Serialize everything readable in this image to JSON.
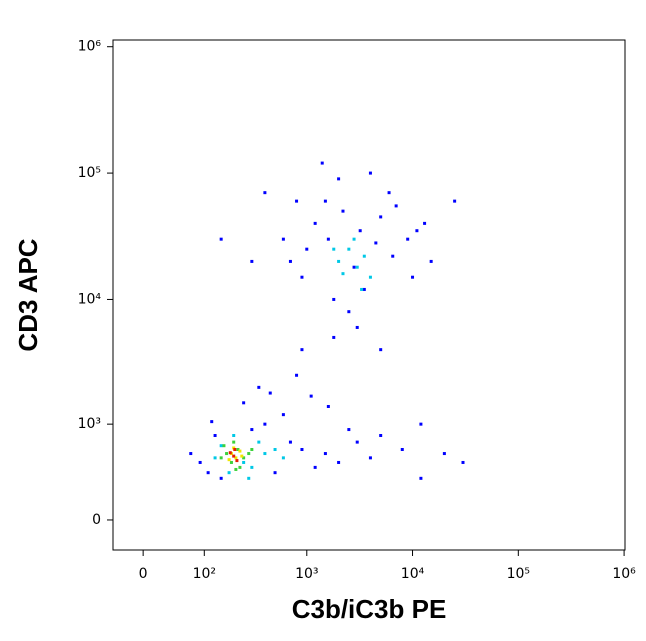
{
  "chart_data": {
    "type": "scatter",
    "x_label": "C3b/iC3b PE",
    "y_label": "CD3 APC",
    "xscale": "logicle",
    "yscale": "logicle",
    "xlim": [
      -40,
      1020000
    ],
    "ylim": [
      -207,
      1130000
    ],
    "xticks": [
      0,
      {
        "value": 100,
        "label": "10²"
      },
      {
        "value": 1000,
        "label": "10³"
      },
      {
        "value": 10000,
        "label": "10⁴"
      },
      {
        "value": 100000,
        "label": "10⁵"
      },
      {
        "value": 1000000,
        "label": "10⁶"
      }
    ],
    "yticks": [
      0,
      {
        "value": 1000,
        "label": "10³"
      },
      {
        "value": 10000,
        "label": "10⁴"
      },
      {
        "value": 100000,
        "label": "10⁵"
      },
      {
        "value": 1000000,
        "label": "10⁶"
      }
    ],
    "series": [
      {
        "color": "#0000ff",
        "x": [
          90,
          110,
          130,
          150,
          300,
          400,
          500,
          700,
          900,
          1200,
          1500,
          2000,
          3000,
          4000,
          5000,
          8000,
          12000,
          20000,
          70,
          120,
          600,
          250,
          350,
          450,
          800,
          1100,
          1600,
          2500,
          12000,
          30000,
          600,
          1500,
          2200,
          900,
          1000,
          1200,
          1800,
          2500,
          3500,
          5000,
          7000,
          9000,
          13000,
          15000,
          25000,
          400,
          700,
          2000,
          4000,
          6000,
          10000,
          300,
          150,
          1800,
          3000,
          5000,
          800,
          1400,
          900,
          11000,
          2800,
          4500,
          6500,
          1600,
          3200
        ],
        "values": [
          450,
          350,
          800,
          300,
          900,
          1000,
          350,
          700,
          600,
          400,
          550,
          450,
          700,
          500,
          800,
          600,
          1000,
          550,
          550,
          1050,
          1200,
          1500,
          2000,
          1800,
          2500,
          1700,
          1400,
          900,
          300,
          450,
          30000,
          60000,
          50000,
          15000,
          25000,
          40000,
          10000,
          8000,
          12000,
          45000,
          55000,
          30000,
          40000,
          20000,
          60000,
          70000,
          20000,
          90000,
          100000,
          70000,
          15000,
          20000,
          30000,
          5000,
          6000,
          4000,
          60000,
          120000,
          4000,
          35000,
          18000,
          28000,
          22000,
          30000,
          35000
        ]
      },
      {
        "color": "#00c8e6",
        "x": [
          2000,
          2500,
          3000,
          3500,
          2800,
          4000,
          1800,
          3300,
          2200,
          250,
          150,
          300,
          130,
          350,
          200,
          400,
          280,
          180,
          500,
          600
        ],
        "values": [
          20000,
          25000,
          18000,
          22000,
          30000,
          15000,
          25000,
          12000,
          16000,
          450,
          650,
          400,
          500,
          700,
          800,
          550,
          300,
          350,
          600,
          500
        ]
      },
      {
        "color": "#3cd23c",
        "x": [
          170,
          220,
          250,
          190,
          160,
          230,
          280,
          200,
          150,
          300,
          210
        ],
        "values": [
          550,
          600,
          500,
          450,
          650,
          400,
          550,
          700,
          500,
          600,
          380
        ]
      },
      {
        "color": "#f0e600",
        "x": [
          190,
          210,
          230,
          180,
          200,
          240
        ],
        "values": [
          550,
          500,
          580,
          480,
          620,
          520
        ]
      },
      {
        "color": "#e61e00",
        "x": [
          200,
          185,
          215,
          205
        ],
        "values": [
          520,
          560,
          470,
          600
        ]
      }
    ]
  }
}
